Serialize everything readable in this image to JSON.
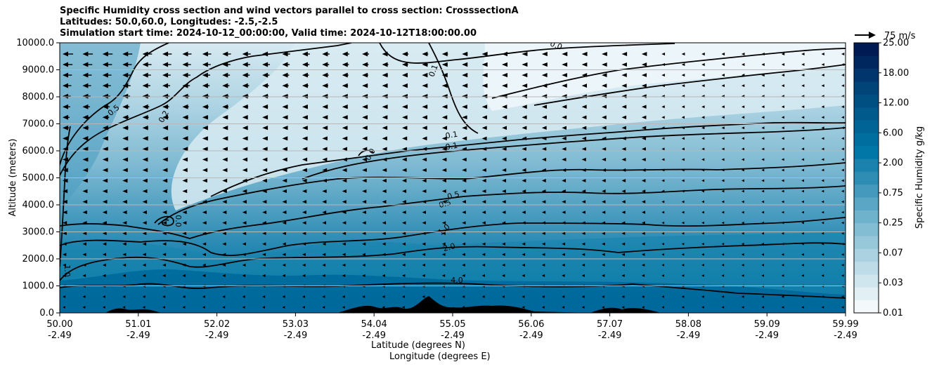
{
  "chart_data": {
    "type": "heatmap",
    "title_lines": [
      "Specific Humidity cross section and wind vectors parallel to cross section: CrosssectionA",
      "Latitudes: 50.0,60.0, Longitudes: -2.5,-2.5",
      "Simulation start time: 2024-10-12_00:00:00, Valid time: 2024-10-12T18:00:00.00"
    ],
    "ylabel": "Altitude (meters)",
    "xlabel_lines": [
      "Latitude (degrees N)",
      "Longitude (degrees E)"
    ],
    "ylim": [
      0,
      10000
    ],
    "y_ticks": [
      "0.0",
      "1000.0",
      "2000.0",
      "3000.0",
      "4000.0",
      "5000.0",
      "6000.0",
      "7000.0",
      "8000.0",
      "9000.0",
      "10000.0"
    ],
    "x_ticks": [
      {
        "lat": "50.00",
        "lon": "-2.49"
      },
      {
        "lat": "51.01",
        "lon": "-2.49"
      },
      {
        "lat": "52.02",
        "lon": "-2.49"
      },
      {
        "lat": "53.03",
        "lon": "-2.49"
      },
      {
        "lat": "54.04",
        "lon": "-2.49"
      },
      {
        "lat": "55.05",
        "lon": "-2.49"
      },
      {
        "lat": "56.06",
        "lon": "-2.49"
      },
      {
        "lat": "57.07",
        "lon": "-2.49"
      },
      {
        "lat": "58.08",
        "lon": "-2.49"
      },
      {
        "lat": "59.09",
        "lon": "-2.49"
      },
      {
        "lat": "59.99",
        "lon": "-2.49"
      }
    ],
    "grid": "horizontal",
    "colorbar": {
      "label": "Specific Humidity g/kg",
      "ticks": [
        "0.01",
        "0.03",
        "0.07",
        "0.25",
        "0.75",
        "2.00",
        "6.00",
        "12.00",
        "18.00",
        "25.00"
      ],
      "colors": [
        "#f3f9fb",
        "#e2eff5",
        "#d0e6ee",
        "#bddce8",
        "#aad2e1",
        "#97c8da",
        "#83bdd3",
        "#6fb2cc",
        "#5aa6c4",
        "#4499bc",
        "#2f8db4",
        "#1b82ad",
        "#0077a6",
        "#006fa0",
        "#006596",
        "#005a8c",
        "#004f82",
        "#004478",
        "#00366c",
        "#00285f",
        "#001b54"
      ]
    },
    "contour_labels": [
      "0.0",
      "0.1",
      "0.5",
      "0.2",
      "0.1",
      "0.1",
      "0.5",
      "0.5",
      "1.0",
      "2.0",
      "4.0",
      "1.0",
      "0.0",
      "0.0"
    ],
    "quiver_key": "75 m/s"
  }
}
